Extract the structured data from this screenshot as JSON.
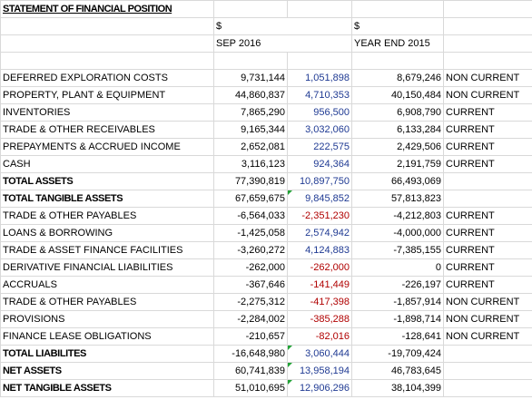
{
  "sheet": {
    "title": "STATEMENT OF FINANCIAL POSITION",
    "currency_a": "$",
    "currency_b": "$",
    "period_a": "SEP 2016",
    "period_b": "YEAR END 2015",
    "colors": {
      "blue": "#1f3a93",
      "red": "#b00000",
      "flag": "#21a336",
      "grid": "#d9d9d9"
    },
    "rows": [
      {
        "label": "DEFERRED EXPLORATION COSTS",
        "sep": "9,731,144",
        "delta": "1,051,898",
        "delta_color": "blue",
        "ye": "8,679,246",
        "class": "NON CURRENT"
      },
      {
        "label": "PROPERTY, PLANT & EQUIPMENT",
        "sep": "44,860,837",
        "delta": "4,710,353",
        "delta_color": "blue",
        "ye": "40,150,484",
        "class": "NON CURRENT"
      },
      {
        "label": "INVENTORIES",
        "sep": "7,865,290",
        "delta": "956,500",
        "delta_color": "blue",
        "ye": "6,908,790",
        "class": "CURRENT"
      },
      {
        "label": "TRADE & OTHER RECEIVABLES",
        "sep": "9,165,344",
        "delta": "3,032,060",
        "delta_color": "blue",
        "ye": "6,133,284",
        "class": "CURRENT"
      },
      {
        "label": "PREPAYMENTS & ACCRUED INCOME",
        "sep": "2,652,081",
        "delta": "222,575",
        "delta_color": "blue",
        "ye": "2,429,506",
        "class": "CURRENT"
      },
      {
        "label": "CASH",
        "sep": "3,116,123",
        "delta": "924,364",
        "delta_color": "blue",
        "ye": "2,191,759",
        "class": "CURRENT"
      },
      {
        "label": "TOTAL ASSETS",
        "sep": "77,390,819",
        "delta": "10,897,750",
        "delta_color": "blue",
        "ye": "66,493,069",
        "class": "",
        "bold": true
      },
      {
        "label": "TOTAL TANGIBLE ASSETS",
        "sep": "67,659,675",
        "delta": "9,845,852",
        "delta_color": "blue",
        "ye": "57,813,823",
        "class": "",
        "bold": true,
        "flag": true
      },
      {
        "label": "TRADE & OTHER PAYABLES",
        "sep": "-6,564,033",
        "delta": "-2,351,230",
        "delta_color": "red",
        "ye": "-4,212,803",
        "class": "CURRENT"
      },
      {
        "label": "LOANS & BORROWING",
        "sep": "-1,425,058",
        "delta": "2,574,942",
        "delta_color": "blue",
        "ye": "-4,000,000",
        "class": "CURRENT"
      },
      {
        "label": "TRADE & ASSET FINANCE FACILITIES",
        "sep": "-3,260,272",
        "delta": "4,124,883",
        "delta_color": "blue",
        "ye": "-7,385,155",
        "class": "CURRENT"
      },
      {
        "label": "DERIVATIVE FINANCIAL LIABILITIES",
        "sep": "-262,000",
        "delta": "-262,000",
        "delta_color": "red",
        "ye": "0",
        "class": "CURRENT"
      },
      {
        "label": "ACCRUALS",
        "sep": "-367,646",
        "delta": "-141,449",
        "delta_color": "red",
        "ye": "-226,197",
        "class": "CURRENT"
      },
      {
        "label": "TRADE & OTHER PAYABLES",
        "sep": "-2,275,312",
        "delta": "-417,398",
        "delta_color": "red",
        "ye": "-1,857,914",
        "class": "NON CURRENT"
      },
      {
        "label": "PROVISIONS",
        "sep": "-2,284,002",
        "delta": "-385,288",
        "delta_color": "red",
        "ye": "-1,898,714",
        "class": "NON CURRENT"
      },
      {
        "label": "FINANCE LEASE OBLIGATIONS",
        "sep": "-210,657",
        "delta": "-82,016",
        "delta_color": "red",
        "ye": "-128,641",
        "class": "NON CURRENT"
      },
      {
        "label": "TOTAL LIABILITES",
        "sep": "-16,648,980",
        "delta": "3,060,444",
        "delta_color": "blue",
        "ye": "-19,709,424",
        "class": "",
        "bold": true,
        "flag": true
      },
      {
        "label": "NET ASSETS",
        "sep": "60,741,839",
        "delta": "13,958,194",
        "delta_color": "blue",
        "ye": "46,783,645",
        "class": "",
        "bold": true,
        "flag": true
      },
      {
        "label": "NET TANGIBLE ASSETS",
        "sep": "51,010,695",
        "delta": "12,906,296",
        "delta_color": "blue",
        "ye": "38,104,399",
        "class": "",
        "bold": true,
        "flag": true
      }
    ]
  }
}
